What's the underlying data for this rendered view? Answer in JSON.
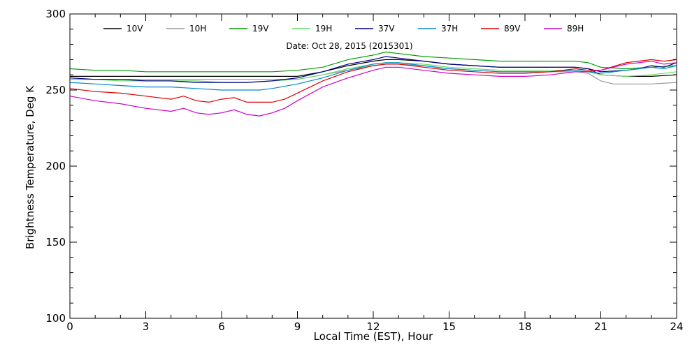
{
  "chart_data": {
    "type": "line",
    "subtitle": "Date: Oct 28, 2015 (2015301)",
    "xlabel": "Local Time (EST), Hour",
    "ylabel": "Brightness Temperature, Deg  K",
    "xlim": [
      0,
      24
    ],
    "ylim": [
      100,
      300
    ],
    "x_ticks": [
      0,
      3,
      6,
      9,
      12,
      15,
      18,
      21,
      24
    ],
    "y_ticks": [
      100,
      150,
      200,
      250,
      300
    ],
    "grid": false,
    "legend_position": "top",
    "series": [
      {
        "name": "10V",
        "color": "#000000",
        "points": [
          [
            0,
            259
          ],
          [
            1,
            259
          ],
          [
            2,
            259
          ],
          [
            3,
            259
          ],
          [
            4,
            259
          ],
          [
            5,
            259
          ],
          [
            6,
            259
          ],
          [
            7,
            259
          ],
          [
            8,
            259
          ],
          [
            9,
            259
          ],
          [
            10,
            262
          ],
          [
            11,
            266
          ],
          [
            12,
            269
          ],
          [
            12.5,
            270
          ],
          [
            13,
            270
          ],
          [
            14,
            269
          ],
          [
            15,
            267
          ],
          [
            16,
            266
          ],
          [
            17,
            265
          ],
          [
            18,
            265
          ],
          [
            19,
            265
          ],
          [
            20,
            265
          ],
          [
            20.5,
            264
          ],
          [
            21,
            260
          ],
          [
            22,
            259
          ],
          [
            23,
            259
          ],
          [
            24,
            260
          ]
        ]
      },
      {
        "name": "10H",
        "color": "#999999",
        "points": [
          [
            0,
            257
          ],
          [
            1,
            257
          ],
          [
            2,
            257
          ],
          [
            3,
            257
          ],
          [
            4,
            257
          ],
          [
            5,
            257
          ],
          [
            6,
            257
          ],
          [
            7,
            257
          ],
          [
            8,
            257
          ],
          [
            9,
            257
          ],
          [
            10,
            260
          ],
          [
            11,
            263
          ],
          [
            12,
            266
          ],
          [
            12.5,
            267
          ],
          [
            13,
            267
          ],
          [
            14,
            266
          ],
          [
            15,
            264
          ],
          [
            16,
            263
          ],
          [
            17,
            262
          ],
          [
            18,
            262
          ],
          [
            19,
            262
          ],
          [
            20,
            262
          ],
          [
            20.5,
            261
          ],
          [
            21,
            256
          ],
          [
            21.5,
            254
          ],
          [
            22,
            254
          ],
          [
            23,
            254
          ],
          [
            24,
            255
          ]
        ]
      },
      {
        "name": "19V",
        "color": "#00a000",
        "points": [
          [
            0,
            264
          ],
          [
            1,
            263
          ],
          [
            2,
            263
          ],
          [
            3,
            262
          ],
          [
            4,
            262
          ],
          [
            5,
            262
          ],
          [
            6,
            262
          ],
          [
            7,
            262
          ],
          [
            8,
            262
          ],
          [
            9,
            263
          ],
          [
            10,
            265
          ],
          [
            11,
            270
          ],
          [
            12,
            273
          ],
          [
            12.5,
            275
          ],
          [
            13,
            274
          ],
          [
            14,
            272
          ],
          [
            15,
            271
          ],
          [
            16,
            270
          ],
          [
            17,
            269
          ],
          [
            18,
            269
          ],
          [
            19,
            269
          ],
          [
            20,
            269
          ],
          [
            20.5,
            268
          ],
          [
            21,
            265
          ],
          [
            22,
            264
          ],
          [
            23,
            265
          ],
          [
            24,
            266
          ]
        ]
      },
      {
        "name": "19H",
        "color": "#66dd66",
        "points": [
          [
            0,
            257
          ],
          [
            1,
            257
          ],
          [
            2,
            256
          ],
          [
            3,
            256
          ],
          [
            4,
            256
          ],
          [
            5,
            256
          ],
          [
            6,
            255
          ],
          [
            7,
            255
          ],
          [
            8,
            256
          ],
          [
            9,
            257
          ],
          [
            10,
            260
          ],
          [
            11,
            264
          ],
          [
            12,
            267
          ],
          [
            12.5,
            268
          ],
          [
            13,
            268
          ],
          [
            14,
            267
          ],
          [
            15,
            265
          ],
          [
            16,
            264
          ],
          [
            17,
            263
          ],
          [
            18,
            263
          ],
          [
            19,
            263
          ],
          [
            20,
            263
          ],
          [
            20.5,
            262
          ],
          [
            21,
            260
          ],
          [
            22,
            259
          ],
          [
            23,
            260
          ],
          [
            24,
            262
          ]
        ]
      },
      {
        "name": "37V",
        "color": "#000080",
        "points": [
          [
            0,
            258
          ],
          [
            1,
            257
          ],
          [
            2,
            257
          ],
          [
            3,
            256
          ],
          [
            4,
            256
          ],
          [
            5,
            255
          ],
          [
            6,
            255
          ],
          [
            7,
            255
          ],
          [
            8,
            256
          ],
          [
            9,
            258
          ],
          [
            10,
            262
          ],
          [
            11,
            267
          ],
          [
            12,
            270
          ],
          [
            12.5,
            272
          ],
          [
            13,
            271
          ],
          [
            14,
            269
          ],
          [
            15,
            267
          ],
          [
            16,
            266
          ],
          [
            17,
            265
          ],
          [
            18,
            265
          ],
          [
            19,
            265
          ],
          [
            20,
            265
          ],
          [
            20.5,
            264
          ],
          [
            21,
            262
          ],
          [
            22,
            263
          ],
          [
            22.5,
            264
          ],
          [
            23,
            266
          ],
          [
            23.5,
            265
          ],
          [
            24,
            268
          ]
        ]
      },
      {
        "name": "37H",
        "color": "#0088cc",
        "points": [
          [
            0,
            255
          ],
          [
            1,
            254
          ],
          [
            2,
            253
          ],
          [
            3,
            252
          ],
          [
            4,
            252
          ],
          [
            5,
            251
          ],
          [
            6,
            250
          ],
          [
            7,
            250
          ],
          [
            7.5,
            250
          ],
          [
            8,
            251
          ],
          [
            9,
            254
          ],
          [
            10,
            258
          ],
          [
            11,
            263
          ],
          [
            12,
            267
          ],
          [
            12.5,
            268
          ],
          [
            13,
            268
          ],
          [
            14,
            266
          ],
          [
            15,
            264
          ],
          [
            16,
            263
          ],
          [
            17,
            262
          ],
          [
            18,
            262
          ],
          [
            19,
            262
          ],
          [
            20,
            263
          ],
          [
            20.5,
            262
          ],
          [
            21,
            261
          ],
          [
            22,
            263
          ],
          [
            22.5,
            264
          ],
          [
            23,
            265
          ],
          [
            23.5,
            264
          ],
          [
            24,
            266
          ]
        ]
      },
      {
        "name": "89V",
        "color": "#dd0000",
        "points": [
          [
            0,
            251
          ],
          [
            1,
            249
          ],
          [
            2,
            248
          ],
          [
            3,
            246
          ],
          [
            4,
            244
          ],
          [
            4.5,
            246
          ],
          [
            5,
            243
          ],
          [
            5.5,
            242
          ],
          [
            6,
            244
          ],
          [
            6.5,
            245
          ],
          [
            7,
            242
          ],
          [
            8,
            242
          ],
          [
            8.5,
            244
          ],
          [
            9,
            248
          ],
          [
            10,
            256
          ],
          [
            11,
            262
          ],
          [
            12,
            266
          ],
          [
            12.5,
            267
          ],
          [
            13,
            267
          ],
          [
            14,
            265
          ],
          [
            15,
            263
          ],
          [
            16,
            262
          ],
          [
            17,
            261
          ],
          [
            18,
            261
          ],
          [
            19,
            262
          ],
          [
            20,
            264
          ],
          [
            20.5,
            263
          ],
          [
            21,
            263
          ],
          [
            22,
            268
          ],
          [
            22.5,
            269
          ],
          [
            23,
            270
          ],
          [
            23.5,
            269
          ],
          [
            24,
            270
          ]
        ]
      },
      {
        "name": "89H",
        "color": "#cc00cc",
        "points": [
          [
            0,
            246
          ],
          [
            1,
            243
          ],
          [
            2,
            241
          ],
          [
            3,
            238
          ],
          [
            4,
            236
          ],
          [
            4.5,
            238
          ],
          [
            5,
            235
          ],
          [
            5.5,
            234
          ],
          [
            6,
            235
          ],
          [
            6.5,
            237
          ],
          [
            7,
            234
          ],
          [
            7.5,
            233
          ],
          [
            8,
            235
          ],
          [
            8.5,
            238
          ],
          [
            9,
            243
          ],
          [
            10,
            252
          ],
          [
            11,
            258
          ],
          [
            12,
            263
          ],
          [
            12.5,
            265
          ],
          [
            13,
            265
          ],
          [
            14,
            263
          ],
          [
            15,
            261
          ],
          [
            16,
            260
          ],
          [
            17,
            259
          ],
          [
            18,
            259
          ],
          [
            19,
            260
          ],
          [
            20,
            262
          ],
          [
            20.5,
            262
          ],
          [
            21,
            263
          ],
          [
            22,
            267
          ],
          [
            22.5,
            268
          ],
          [
            23,
            269
          ],
          [
            23.5,
            267
          ],
          [
            24,
            268
          ]
        ]
      }
    ]
  }
}
